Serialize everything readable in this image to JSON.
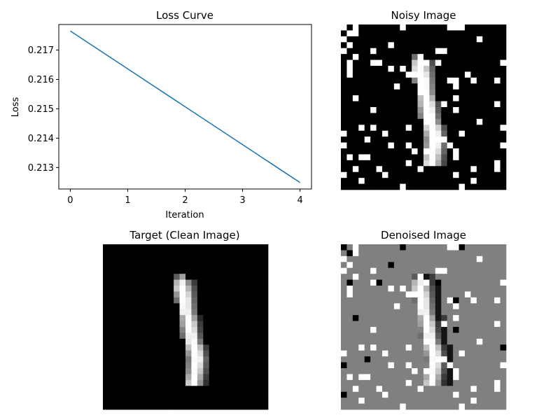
{
  "colors": {
    "line": "#1f77b4",
    "axis": "#000000",
    "denoise_bg": "#808080"
  },
  "chart_data": [
    {
      "type": "line",
      "title": "Loss Curve",
      "xlabel": "Iteration",
      "ylabel": "Loss",
      "x": [
        0,
        1,
        2,
        3,
        4
      ],
      "series": [
        {
          "values": [
            0.21765,
            0.21636,
            0.21507,
            0.21378,
            0.21249
          ]
        }
      ],
      "xlim": [
        -0.2,
        4.2
      ],
      "ylim": [
        0.21227,
        0.21787
      ],
      "xticks": [
        0,
        1,
        2,
        3,
        4
      ],
      "xtick_labels": [
        "0",
        "1",
        "2",
        "3",
        "4"
      ],
      "yticks": [
        0.213,
        0.214,
        0.215,
        0.216,
        0.217
      ],
      "ytick_labels": [
        "0.213",
        "0.214",
        "0.215",
        "0.216",
        "0.217"
      ],
      "grid": false
    },
    {
      "type": "heatmap",
      "title": "Noisy Image",
      "grid_size": [
        28,
        28
      ],
      "colormap": "gray"
    },
    {
      "type": "heatmap",
      "title": "Target (Clean Image)",
      "grid_size": [
        28,
        28
      ],
      "colormap": "gray"
    },
    {
      "type": "heatmap",
      "title": "Denoised Image",
      "grid_size": [
        28,
        28
      ],
      "colormap": "gray"
    }
  ]
}
